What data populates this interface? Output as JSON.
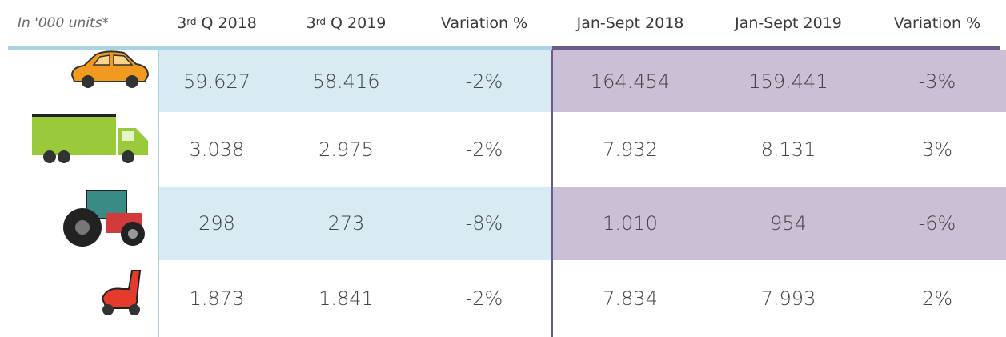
{
  "header": {
    "units": "In '000 units*",
    "columns": [
      {
        "base": "3",
        "sup": "rd",
        "text": "Q 2018"
      },
      {
        "base": "3",
        "sup": "rd",
        "text": "Q 2019"
      },
      {
        "text": "Variation %"
      },
      {
        "text": "Jan-Sept 2018"
      },
      {
        "text": "Jan-Sept 2019"
      },
      {
        "text": "Variation %"
      }
    ]
  },
  "table": {
    "rows": [
      [
        "59.627",
        "58.416",
        "-2%",
        "164.454",
        "159.441",
        "-3%"
      ],
      [
        "3.038",
        "2.975",
        "-2%",
        "7.932",
        "8.131",
        "3%"
      ],
      [
        "298",
        "273",
        "-8%",
        "1.010",
        "954",
        "-6%"
      ],
      [
        "1.873",
        "1.841",
        "-2%",
        "7.834",
        "7.993",
        "2%"
      ]
    ]
  }
}
